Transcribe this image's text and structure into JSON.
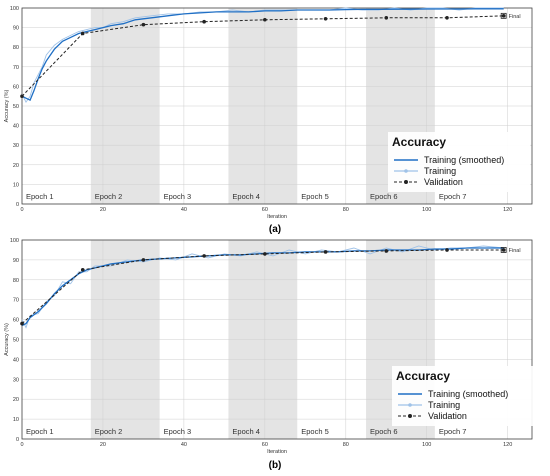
{
  "panels": [
    {
      "caption": "(a)",
      "chart_data": {
        "type": "line",
        "title": "",
        "xlabel": "Iteration",
        "ylabel": "Accuracy (%)",
        "xlim": [
          0,
          126
        ],
        "ylim": [
          0,
          100
        ],
        "xticks": [
          0,
          20,
          40,
          60,
          80,
          100,
          120
        ],
        "yticks": [
          0,
          10,
          20,
          30,
          40,
          50,
          60,
          70,
          80,
          90,
          100
        ],
        "grid": true,
        "epochs": [
          "Epoch 1",
          "Epoch 2",
          "Epoch 3",
          "Epoch 4",
          "Epoch 5",
          "Epoch 6",
          "Epoch 7"
        ],
        "epoch_boundaries": [
          0,
          17,
          34,
          51,
          68,
          85,
          102,
          119
        ],
        "final_label": "Final",
        "legend": {
          "title": "Accuracy",
          "position": "bottom-right",
          "entries": [
            "Training (smoothed)",
            "Training",
            "Validation"
          ]
        },
        "series": [
          {
            "name": "Training (smoothed)",
            "color": "#1f6fc5",
            "x": [
              0,
              1,
              2,
              3,
              4,
              5,
              6,
              8,
              10,
              12,
              14,
              16,
              18,
              20,
              22,
              25,
              28,
              32,
              36,
              40,
              44,
              48,
              52,
              56,
              60,
              64,
              68,
              72,
              76,
              80,
              84,
              88,
              92,
              96,
              100,
              104,
              108,
              112,
              116,
              119
            ],
            "y": [
              55,
              54,
              53,
              58,
              64,
              69,
              73,
              79,
              83,
              85,
              87,
              88,
              89,
              90,
              91,
              92,
              94,
              95,
              96,
              97,
              97.5,
              98,
              98,
              98,
              98.5,
              98.5,
              99,
              99,
              99,
              99.2,
              99.3,
              99.3,
              99.4,
              99.4,
              99.5,
              99.5,
              99.5,
              99.6,
              99.6,
              99.6
            ]
          },
          {
            "name": "Training",
            "color": "#9fc2e8",
            "x": [
              0,
              1,
              2,
              3,
              4,
              5,
              6,
              8,
              10,
              12,
              14,
              16,
              18,
              20,
              22,
              25,
              28,
              32,
              36,
              40,
              44,
              48,
              52,
              56,
              60,
              64,
              68,
              72,
              76,
              80,
              84,
              88,
              92,
              96,
              100,
              104,
              108,
              112,
              116,
              119
            ],
            "y": [
              56,
              52,
              55,
              62,
              66,
              70,
              76,
              81,
              84,
              86,
              88,
              89,
              90,
              90,
              92,
              93,
              95,
              96,
              97,
              97,
              98,
              98,
              99,
              98,
              99,
              99,
              99,
              99,
              99,
              100,
              99,
              99,
              100,
              99,
              100,
              100,
              99,
              100,
              100,
              100
            ]
          },
          {
            "name": "Validation",
            "color": "#222222",
            "x": [
              0,
              15,
              30,
              45,
              60,
              75,
              90,
              105,
              119
            ],
            "y": [
              55,
              87,
              91.5,
              93,
              94,
              94.5,
              95,
              95,
              96
            ]
          }
        ]
      }
    },
    {
      "caption": "(b)",
      "chart_data": {
        "type": "line",
        "title": "",
        "xlabel": "Iteration",
        "ylabel": "Accuracy (%)",
        "xlim": [
          0,
          126
        ],
        "ylim": [
          0,
          100
        ],
        "xticks": [
          0,
          20,
          40,
          60,
          80,
          100,
          120
        ],
        "yticks": [
          0,
          10,
          20,
          30,
          40,
          50,
          60,
          70,
          80,
          90,
          100
        ],
        "grid": true,
        "epochs": [
          "Epoch 1",
          "Epoch 2",
          "Epoch 3",
          "Epoch 4",
          "Epoch 5",
          "Epoch 6",
          "Epoch 7"
        ],
        "epoch_boundaries": [
          0,
          17,
          34,
          51,
          68,
          85,
          102,
          119
        ],
        "final_label": "Final",
        "legend": {
          "title": "Accuracy",
          "position": "bottom-right",
          "entries": [
            "Training (smoothed)",
            "Training",
            "Validation"
          ]
        },
        "series": [
          {
            "name": "Training (smoothed)",
            "color": "#1f6fc5",
            "x": [
              0,
              1,
              2,
              4,
              6,
              8,
              10,
              12,
              14,
              16,
              18,
              22,
              26,
              30,
              34,
              38,
              42,
              46,
              50,
              54,
              58,
              62,
              66,
              70,
              74,
              78,
              82,
              86,
              90,
              94,
              98,
              102,
              106,
              110,
              114,
              119
            ],
            "y": [
              57,
              58,
              61,
              64,
              68,
              73,
              77,
              80,
              83,
              85,
              86,
              88,
              89,
              90,
              90.5,
              91,
              91.5,
              92,
              92.5,
              92.5,
              93,
              93.5,
              93.5,
              94,
              94,
              94,
              94.5,
              94.5,
              95,
              95,
              95,
              95.5,
              95.5,
              96,
              96,
              96
            ]
          },
          {
            "name": "Training",
            "color": "#9fc2e8",
            "x": [
              0,
              1,
              2,
              4,
              6,
              8,
              10,
              12,
              14,
              16,
              18,
              22,
              26,
              30,
              34,
              38,
              42,
              46,
              50,
              54,
              58,
              62,
              66,
              70,
              74,
              78,
              82,
              86,
              90,
              94,
              98,
              102,
              106,
              110,
              114,
              119
            ],
            "y": [
              60,
              56,
              62,
              63,
              69,
              72,
              79,
              78,
              84,
              84,
              87,
              87,
              90,
              89,
              91,
              90,
              93,
              91,
              93,
              92,
              94,
              92,
              95,
              93,
              95,
              94,
              96,
              93,
              96,
              94,
              97,
              95,
              96,
              96,
              97,
              96
            ]
          },
          {
            "name": "Validation",
            "color": "#222222",
            "x": [
              0,
              15,
              30,
              45,
              60,
              75,
              90,
              105,
              119
            ],
            "y": [
              58,
              85,
              90,
              92,
              93,
              94,
              94.5,
              95,
              95
            ]
          }
        ]
      }
    }
  ]
}
